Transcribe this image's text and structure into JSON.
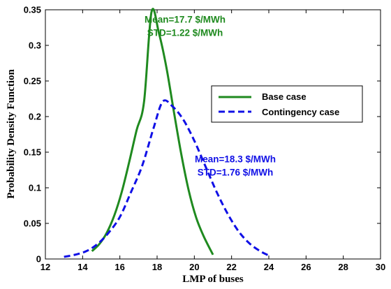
{
  "chart_data": {
    "type": "line",
    "xlabel": "LMP of buses",
    "ylabel": "Probability Density Function",
    "xlim": [
      12,
      30
    ],
    "ylim": [
      0,
      0.35
    ],
    "xticks": [
      "12",
      "14",
      "16",
      "18",
      "20",
      "22",
      "24",
      "26",
      "28",
      "30"
    ],
    "yticks": [
      "0",
      "0.05",
      "0.1",
      "0.15",
      "0.2",
      "0.25",
      "0.3",
      "0.35"
    ],
    "grid": false,
    "legend_position": "right",
    "series": [
      {
        "name": "Base case",
        "color": "#1f8a1f",
        "style": "solid",
        "x": [
          14.5,
          14.9,
          15.3,
          15.7,
          16.1,
          16.5,
          16.9,
          17.3,
          17.7,
          18.1,
          18.5,
          18.9,
          19.3,
          19.7,
          20.1,
          20.5,
          21.0
        ],
        "y": [
          0.011,
          0.021,
          0.037,
          0.061,
          0.094,
          0.136,
          0.181,
          0.221,
          0.347,
          0.317,
          0.269,
          0.207,
          0.147,
          0.096,
          0.058,
          0.032,
          0.006
        ]
      },
      {
        "name": "Contingency case",
        "color": "#1010e6",
        "style": "dashed",
        "x": [
          13.0,
          13.6,
          14.2,
          14.8,
          15.4,
          16.0,
          16.6,
          17.2,
          17.8,
          18.3,
          18.8,
          19.4,
          20.0,
          20.6,
          21.2,
          21.8,
          22.4,
          23.0,
          23.6,
          24.0
        ],
        "y": [
          0.003,
          0.006,
          0.011,
          0.021,
          0.037,
          0.059,
          0.094,
          0.131,
          0.183,
          0.221,
          0.215,
          0.196,
          0.166,
          0.13,
          0.094,
          0.063,
          0.038,
          0.021,
          0.01,
          0.005
        ]
      }
    ],
    "annotations": [
      {
        "text": "Mean=17.7 $/MWh",
        "color": "#1f8a1f",
        "x": 19.5,
        "y": 0.332
      },
      {
        "text": "STD=1.22 $/MWh",
        "color": "#1f8a1f",
        "x": 19.5,
        "y": 0.313
      },
      {
        "text": "Mean=18.3 $/MWh",
        "color": "#1010e6",
        "x": 22.2,
        "y": 0.136
      },
      {
        "text": "STD=1.76 $/MWh",
        "color": "#1010e6",
        "x": 22.2,
        "y": 0.117
      }
    ]
  }
}
